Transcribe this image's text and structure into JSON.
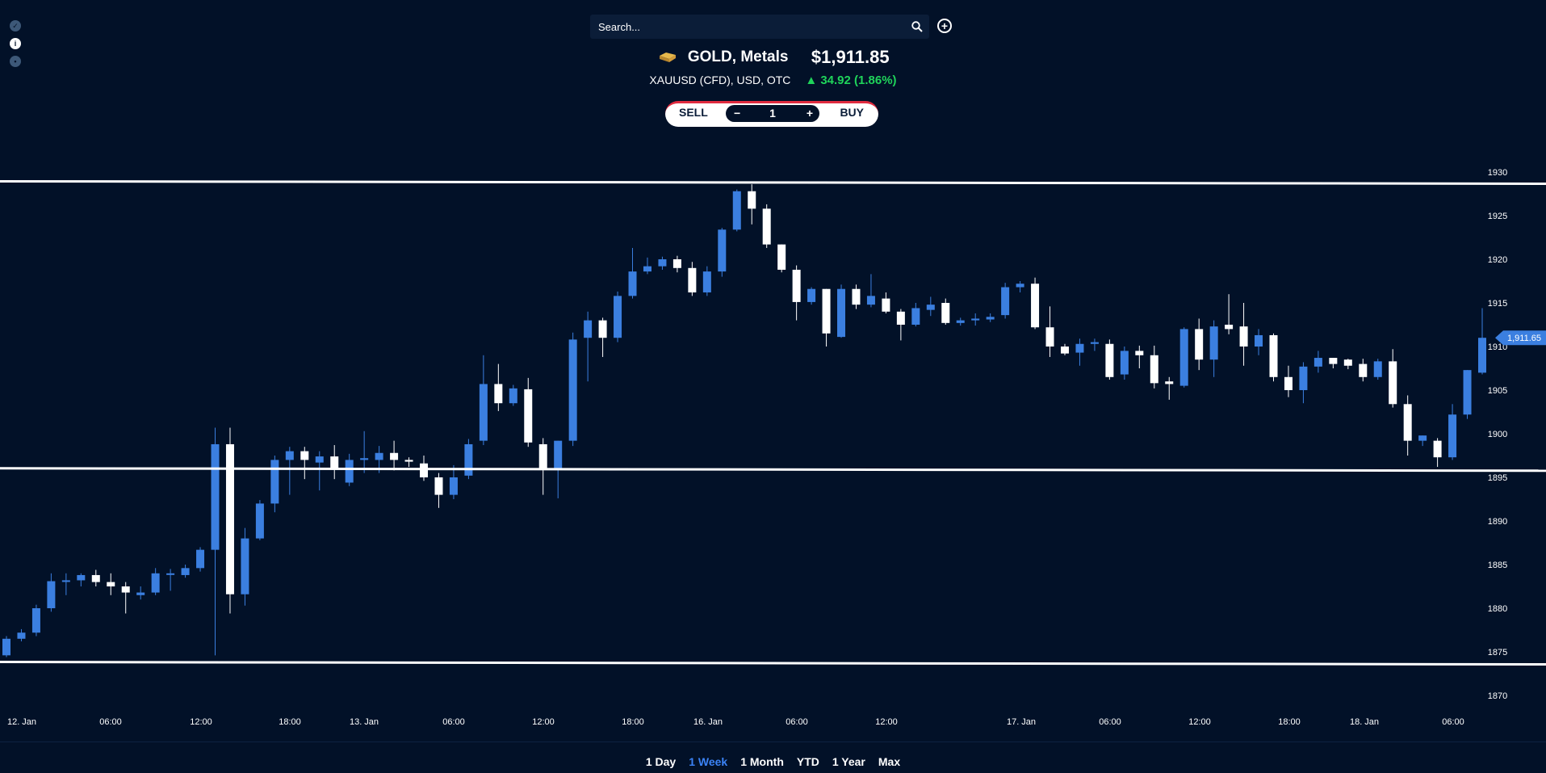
{
  "search": {
    "placeholder": "Search..."
  },
  "instrument": {
    "name": "GOLD, Metals",
    "price": "$1,911.85",
    "subtitle": "XAUUSD (CFD), USD, OTC",
    "change": "▲ 34.92 (1.86%)"
  },
  "trade": {
    "sell_label": "SELL",
    "buy_label": "BUY",
    "minus": "−",
    "plus": "+",
    "quantity": "1"
  },
  "periods": [
    {
      "label": "1 Day",
      "active": false
    },
    {
      "label": "1 Week",
      "active": true
    },
    {
      "label": "1 Month",
      "active": false
    },
    {
      "label": "YTD",
      "active": false
    },
    {
      "label": "1 Year",
      "active": false
    },
    {
      "label": "Max",
      "active": false
    }
  ],
  "colors": {
    "background": "#021128",
    "up": "#3b7fe0",
    "down": "#ffffff",
    "change": "#1fd35a",
    "active_period": "#3b83f6"
  },
  "chart_data": {
    "type": "candlestick",
    "ylim": [
      1870,
      1930
    ],
    "y_ticks": [
      1930,
      1925,
      1920,
      1915,
      1910,
      1905,
      1900,
      1895,
      1890,
      1885,
      1880,
      1875,
      1870
    ],
    "x_tick_labels": [
      "12. Jan",
      "06:00",
      "12:00",
      "18:00",
      "13. Jan",
      "06:00",
      "12:00",
      "18:00",
      "16. Jan",
      "06:00",
      "12:00",
      "17. Jan",
      "06:00",
      "12:00",
      "18:00",
      "18. Jan",
      "06:00"
    ],
    "current_price_label": "1,911.65",
    "horizontal_lines": [
      1928.8,
      1895.9,
      1873.7
    ],
    "candles": [
      [
        1874.6,
        1876.5,
        1874.4,
        1876.8
      ],
      [
        1876.5,
        1877.2,
        1876.2,
        1877.6
      ],
      [
        1877.2,
        1880.0,
        1876.8,
        1880.4
      ],
      [
        1880.0,
        1883.1,
        1879.6,
        1884.0
      ],
      [
        1883.1,
        1883.2,
        1881.5,
        1884.0
      ],
      [
        1883.2,
        1883.8,
        1882.5,
        1884.0
      ],
      [
        1883.8,
        1883.0,
        1882.5,
        1884.4
      ],
      [
        1883.0,
        1882.5,
        1881.5,
        1884.0
      ],
      [
        1882.5,
        1881.8,
        1879.4,
        1883.0
      ],
      [
        1881.5,
        1881.8,
        1881.0,
        1882.5
      ],
      [
        1881.8,
        1884.0,
        1881.5,
        1884.6
      ],
      [
        1884.0,
        1884.0,
        1882.0,
        1884.5
      ],
      [
        1883.8,
        1884.6,
        1883.5,
        1885.0
      ],
      [
        1884.6,
        1886.7,
        1884.2,
        1887.0
      ],
      [
        1886.7,
        1898.8,
        1874.6,
        1900.7
      ],
      [
        1898.8,
        1881.6,
        1879.4,
        1900.7
      ],
      [
        1881.6,
        1888.0,
        1880.3,
        1889.2
      ],
      [
        1888.0,
        1892.0,
        1887.8,
        1892.4
      ],
      [
        1892.0,
        1897.0,
        1891.0,
        1897.5
      ],
      [
        1897.0,
        1898.0,
        1893.0,
        1898.5
      ],
      [
        1898.0,
        1897.0,
        1894.8,
        1898.5
      ],
      [
        1896.7,
        1897.4,
        1893.5,
        1898.0
      ],
      [
        1897.4,
        1896.0,
        1894.8,
        1898.7
      ],
      [
        1894.4,
        1897.0,
        1894.0,
        1897.7
      ],
      [
        1897.0,
        1897.2,
        1895.5,
        1900.3
      ],
      [
        1897.0,
        1897.8,
        1895.5,
        1898.6
      ],
      [
        1897.8,
        1897.0,
        1895.8,
        1899.2
      ],
      [
        1897.0,
        1896.8,
        1896.2,
        1897.3
      ],
      [
        1896.6,
        1895.0,
        1894.6,
        1897.5
      ],
      [
        1895.0,
        1893.0,
        1891.5,
        1895.5
      ],
      [
        1893.0,
        1895.0,
        1892.5,
        1896.4
      ],
      [
        1895.2,
        1898.8,
        1894.8,
        1899.4
      ],
      [
        1899.2,
        1905.7,
        1898.7,
        1909.0
      ],
      [
        1905.7,
        1903.5,
        1902.6,
        1908.0
      ],
      [
        1903.5,
        1905.2,
        1903.2,
        1905.6
      ],
      [
        1905.1,
        1899.0,
        1898.5,
        1906.4
      ],
      [
        1898.8,
        1896.0,
        1893.0,
        1899.5
      ],
      [
        1896.0,
        1899.2,
        1892.6,
        1899.2
      ],
      [
        1899.2,
        1910.8,
        1898.6,
        1911.6
      ],
      [
        1911.0,
        1913.0,
        1906.0,
        1914.0
      ],
      [
        1913.0,
        1911.0,
        1908.8,
        1913.3
      ],
      [
        1911.0,
        1915.8,
        1910.5,
        1916.3
      ],
      [
        1915.8,
        1918.6,
        1915.5,
        1921.3
      ],
      [
        1918.6,
        1919.2,
        1918.3,
        1920.2
      ],
      [
        1919.2,
        1920.0,
        1918.8,
        1920.3
      ],
      [
        1920.0,
        1919.0,
        1918.5,
        1920.4
      ],
      [
        1919.0,
        1916.2,
        1915.8,
        1919.7
      ],
      [
        1916.2,
        1918.6,
        1915.8,
        1919.2
      ],
      [
        1918.6,
        1923.4,
        1918.0,
        1923.6
      ],
      [
        1923.4,
        1927.8,
        1923.2,
        1928.0
      ],
      [
        1927.8,
        1925.8,
        1924.0,
        1928.6
      ],
      [
        1925.8,
        1921.7,
        1921.3,
        1926.3
      ],
      [
        1921.7,
        1918.8,
        1918.5,
        1921.7
      ],
      [
        1918.8,
        1915.1,
        1913.0,
        1919.3
      ],
      [
        1915.1,
        1916.6,
        1914.8,
        1916.8
      ],
      [
        1916.6,
        1911.5,
        1910.0,
        1916.6
      ],
      [
        1911.1,
        1916.6,
        1911.0,
        1917.1
      ],
      [
        1916.6,
        1914.8,
        1914.3,
        1917.1
      ],
      [
        1914.8,
        1915.8,
        1914.5,
        1918.3
      ],
      [
        1915.5,
        1914.0,
        1913.8,
        1916.2
      ],
      [
        1914.0,
        1912.5,
        1910.7,
        1914.3
      ],
      [
        1912.5,
        1914.4,
        1912.3,
        1915.0
      ],
      [
        1914.2,
        1914.8,
        1913.5,
        1915.7
      ],
      [
        1915.0,
        1912.7,
        1912.5,
        1915.5
      ],
      [
        1912.7,
        1913.0,
        1912.4,
        1913.3
      ],
      [
        1913.0,
        1913.2,
        1912.4,
        1913.8
      ],
      [
        1913.1,
        1913.4,
        1912.8,
        1913.8
      ],
      [
        1913.6,
        1916.8,
        1913.2,
        1917.3
      ],
      [
        1916.8,
        1917.2,
        1916.2,
        1917.5
      ],
      [
        1917.2,
        1912.2,
        1912.0,
        1917.9
      ],
      [
        1912.2,
        1910.0,
        1908.8,
        1914.6
      ],
      [
        1910.0,
        1909.2,
        1909.0,
        1910.3
      ],
      [
        1909.3,
        1910.3,
        1907.8,
        1910.9
      ],
      [
        1910.3,
        1910.5,
        1909.5,
        1910.9
      ],
      [
        1910.3,
        1906.5,
        1906.2,
        1910.8
      ],
      [
        1906.8,
        1909.5,
        1906.2,
        1910.0
      ],
      [
        1909.5,
        1909.0,
        1907.5,
        1910.1
      ],
      [
        1909.0,
        1905.8,
        1905.2,
        1910.1
      ],
      [
        1906.0,
        1905.7,
        1903.9,
        1906.5
      ],
      [
        1905.5,
        1912.0,
        1905.3,
        1912.2
      ],
      [
        1912.0,
        1908.5,
        1907.3,
        1913.2
      ],
      [
        1908.5,
        1912.3,
        1906.5,
        1913.0
      ],
      [
        1912.5,
        1912.0,
        1911.4,
        1916.0
      ],
      [
        1912.3,
        1910.0,
        1907.8,
        1915.0
      ],
      [
        1910.0,
        1911.3,
        1909.0,
        1912.0
      ],
      [
        1911.3,
        1906.5,
        1906.0,
        1911.5
      ],
      [
        1906.5,
        1905.0,
        1904.2,
        1907.8
      ],
      [
        1905.0,
        1907.7,
        1903.5,
        1908.2
      ],
      [
        1907.7,
        1908.7,
        1907.0,
        1909.5
      ],
      [
        1908.7,
        1908.0,
        1907.5,
        1908.7
      ],
      [
        1908.5,
        1907.8,
        1907.4,
        1908.6
      ],
      [
        1908.0,
        1906.5,
        1906.0,
        1908.6
      ],
      [
        1906.5,
        1908.3,
        1906.2,
        1908.6
      ],
      [
        1908.3,
        1903.4,
        1903.0,
        1909.7
      ],
      [
        1903.4,
        1899.2,
        1897.5,
        1904.4
      ],
      [
        1899.2,
        1899.8,
        1898.6,
        1899.8
      ],
      [
        1899.2,
        1897.3,
        1896.2,
        1899.5
      ],
      [
        1897.3,
        1902.2,
        1897.0,
        1903.4
      ],
      [
        1902.2,
        1907.3,
        1901.7,
        1907.3
      ],
      [
        1907.0,
        1911.0,
        1906.8,
        1914.4
      ]
    ]
  }
}
